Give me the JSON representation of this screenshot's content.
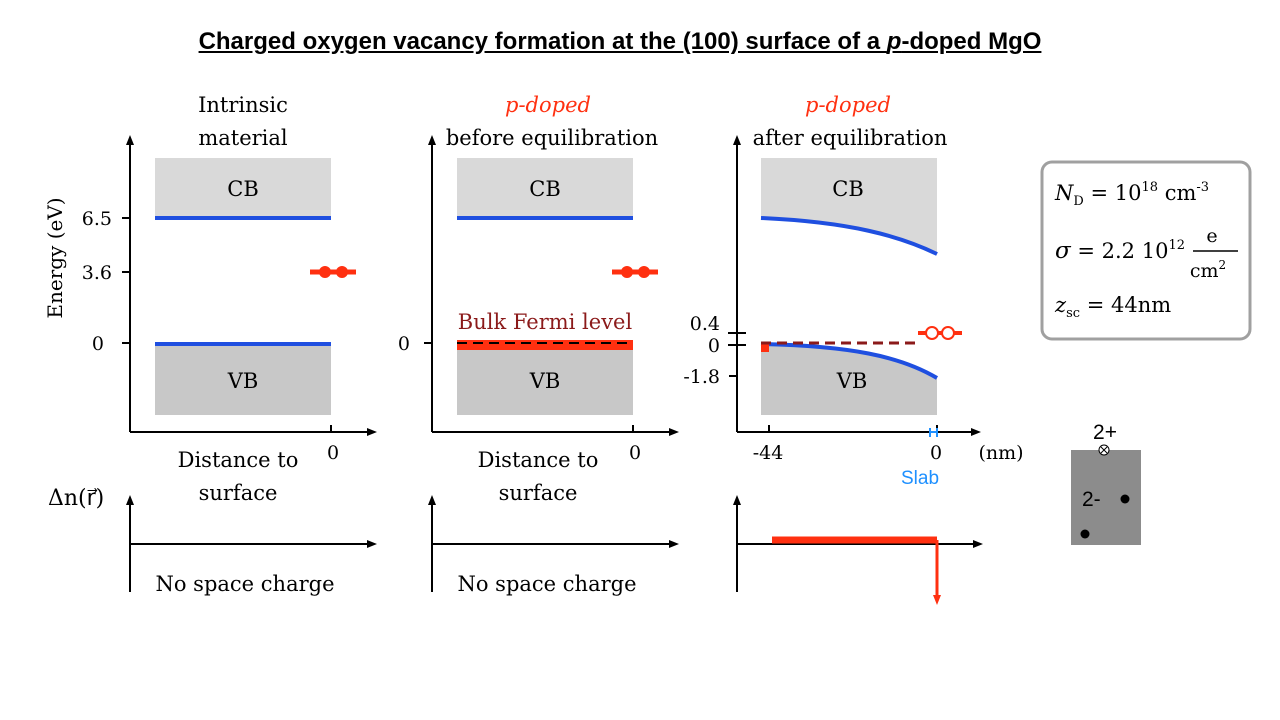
{
  "title": {
    "before": "Charged oxygen vacancy formation at the (100) surface of a ",
    "italic": "p",
    "after": "-doped MgO"
  },
  "axis": {
    "energy_label": "Energy (eV)",
    "delta_n_label": "Δn(r⃗)"
  },
  "panel1": {
    "title_line1": "Intrinsic",
    "title_line2": "material",
    "cb": "CB",
    "vb": "VB",
    "y_ticks": [
      "6.5",
      "3.6",
      "0"
    ],
    "x_tick": "0",
    "xlabel_line1": "Distance to",
    "xlabel_line2": "surface",
    "bottom_caption": "No space charge"
  },
  "panel2": {
    "title_line1": "p-doped",
    "title_line2": "before equilibration",
    "cb": "CB",
    "vb": "VB",
    "fermi_label": "Bulk Fermi level",
    "y_tick": "0",
    "x_tick": "0",
    "xlabel_line1": "Distance to",
    "xlabel_line2": "surface",
    "bottom_caption": "No space charge"
  },
  "panel3": {
    "title_line1": "p-doped",
    "title_line2": "after equilibration",
    "cb": "CB",
    "vb": "VB",
    "y_ticks": [
      "0.4",
      "0",
      "-1.8"
    ],
    "x_tick_left": "-44",
    "x_tick_right": "0",
    "x_unit": "(nm)",
    "slab_label": "Slab"
  },
  "params": {
    "nd": "N",
    "nd_sub": "D",
    "nd_eq": " = 10",
    "nd_exp": "18",
    "nd_unit": " cm",
    "nd_unit_exp": "-3",
    "sigma": "σ",
    "sigma_eq": " = 2.2 10",
    "sigma_exp": "12",
    "sigma_num": "e",
    "sigma_den": "cm",
    "sigma_den_exp": "2",
    "z": "z",
    "z_sub": "sc",
    "z_eq": " = 44nm"
  },
  "vacancy": {
    "charge_top": "2+",
    "charge_mid": "2-"
  },
  "colors": {
    "band_blue": "#1f4fe0",
    "defect_red": "#ff3010",
    "fermi_dark": "#8b1a1a",
    "cb_gray": "#d9d9d9",
    "vb_gray": "#c8c8c8",
    "slab_blue": "#1e90ff",
    "box_border": "#a0a0a0",
    "vacancy_box": "#8c8c8c"
  }
}
